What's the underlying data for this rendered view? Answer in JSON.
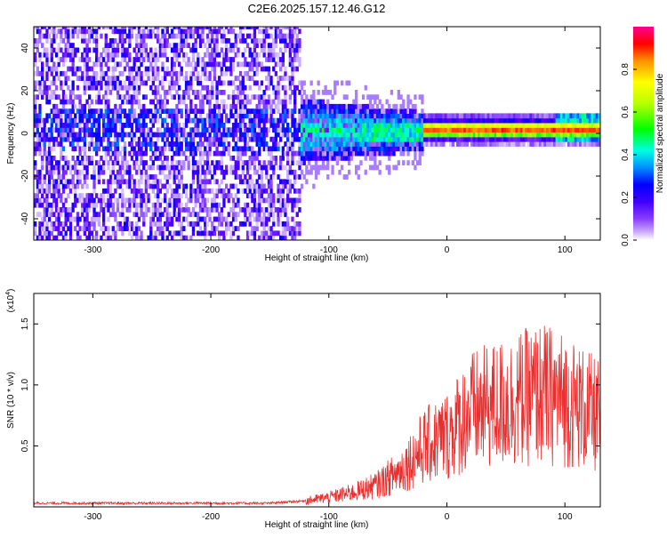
{
  "title": "C2E6.2025.157.12.46.G12",
  "chart_data": [
    {
      "type": "heatmap",
      "xlabel": "Height of straight line (km)",
      "ylabel": "Frequency (Hz)",
      "xlim": [
        -350,
        130
      ],
      "ylim": [
        -50,
        50
      ],
      "xticks": [
        -300,
        -200,
        -100,
        0,
        100
      ],
      "yticks": [
        -40,
        -20,
        0,
        20,
        40
      ],
      "colorbar": {
        "label": "Normalized spectral amplitude",
        "range": [
          0,
          1
        ],
        "ticks": [
          "0.0",
          "0.2",
          "0.4",
          "0.6",
          "0.8"
        ],
        "colors": [
          "#ffffff",
          "#9d6bff",
          "#5a00ff",
          "#0000ff",
          "#00a0ff",
          "#00ffd8",
          "#00ff00",
          "#b8ff00",
          "#ffff00",
          "#ff9000",
          "#ff0000",
          "#ff0090"
        ]
      },
      "regions": [
        {
          "x_range": [
            -350,
            -125
          ],
          "description": "broadband scattered noise, amplitude ~0.05-0.25 across all frequencies"
        },
        {
          "x_range": [
            -125,
            -20
          ],
          "center_hz": 0,
          "spread_hz": 15,
          "amplitude": 0.4
        },
        {
          "x_range": [
            -20,
            130
          ],
          "center_hz": 0,
          "spread_hz": 3,
          "amplitude": 0.85
        }
      ]
    },
    {
      "type": "line",
      "xlabel": "Height of straight line (km)",
      "ylabel": "SNR (10 * v/v)",
      "yscale_label": "(x10",
      "yscale_exp": "4",
      "xlim": [
        -350,
        130
      ],
      "ylim": [
        0,
        1.75
      ],
      "xticks": [
        -300,
        -200,
        -100,
        0,
        100
      ],
      "yticks": [
        "0.5",
        "1.0",
        "1.5"
      ],
      "line_color": "#e83030",
      "series": [
        {
          "x": [
            -350,
            -300,
            -250,
            -200,
            -150,
            -120,
            -100,
            -80,
            -60,
            -40,
            -20,
            -10,
            0,
            10,
            20,
            40,
            60,
            80,
            100,
            120,
            130
          ],
          "y": [
            0.03,
            0.03,
            0.03,
            0.03,
            0.03,
            0.05,
            0.08,
            0.12,
            0.18,
            0.3,
            0.5,
            0.55,
            0.6,
            0.7,
            0.8,
            0.85,
            0.9,
            0.95,
            0.9,
            0.8,
            0.75
          ]
        }
      ]
    }
  ]
}
